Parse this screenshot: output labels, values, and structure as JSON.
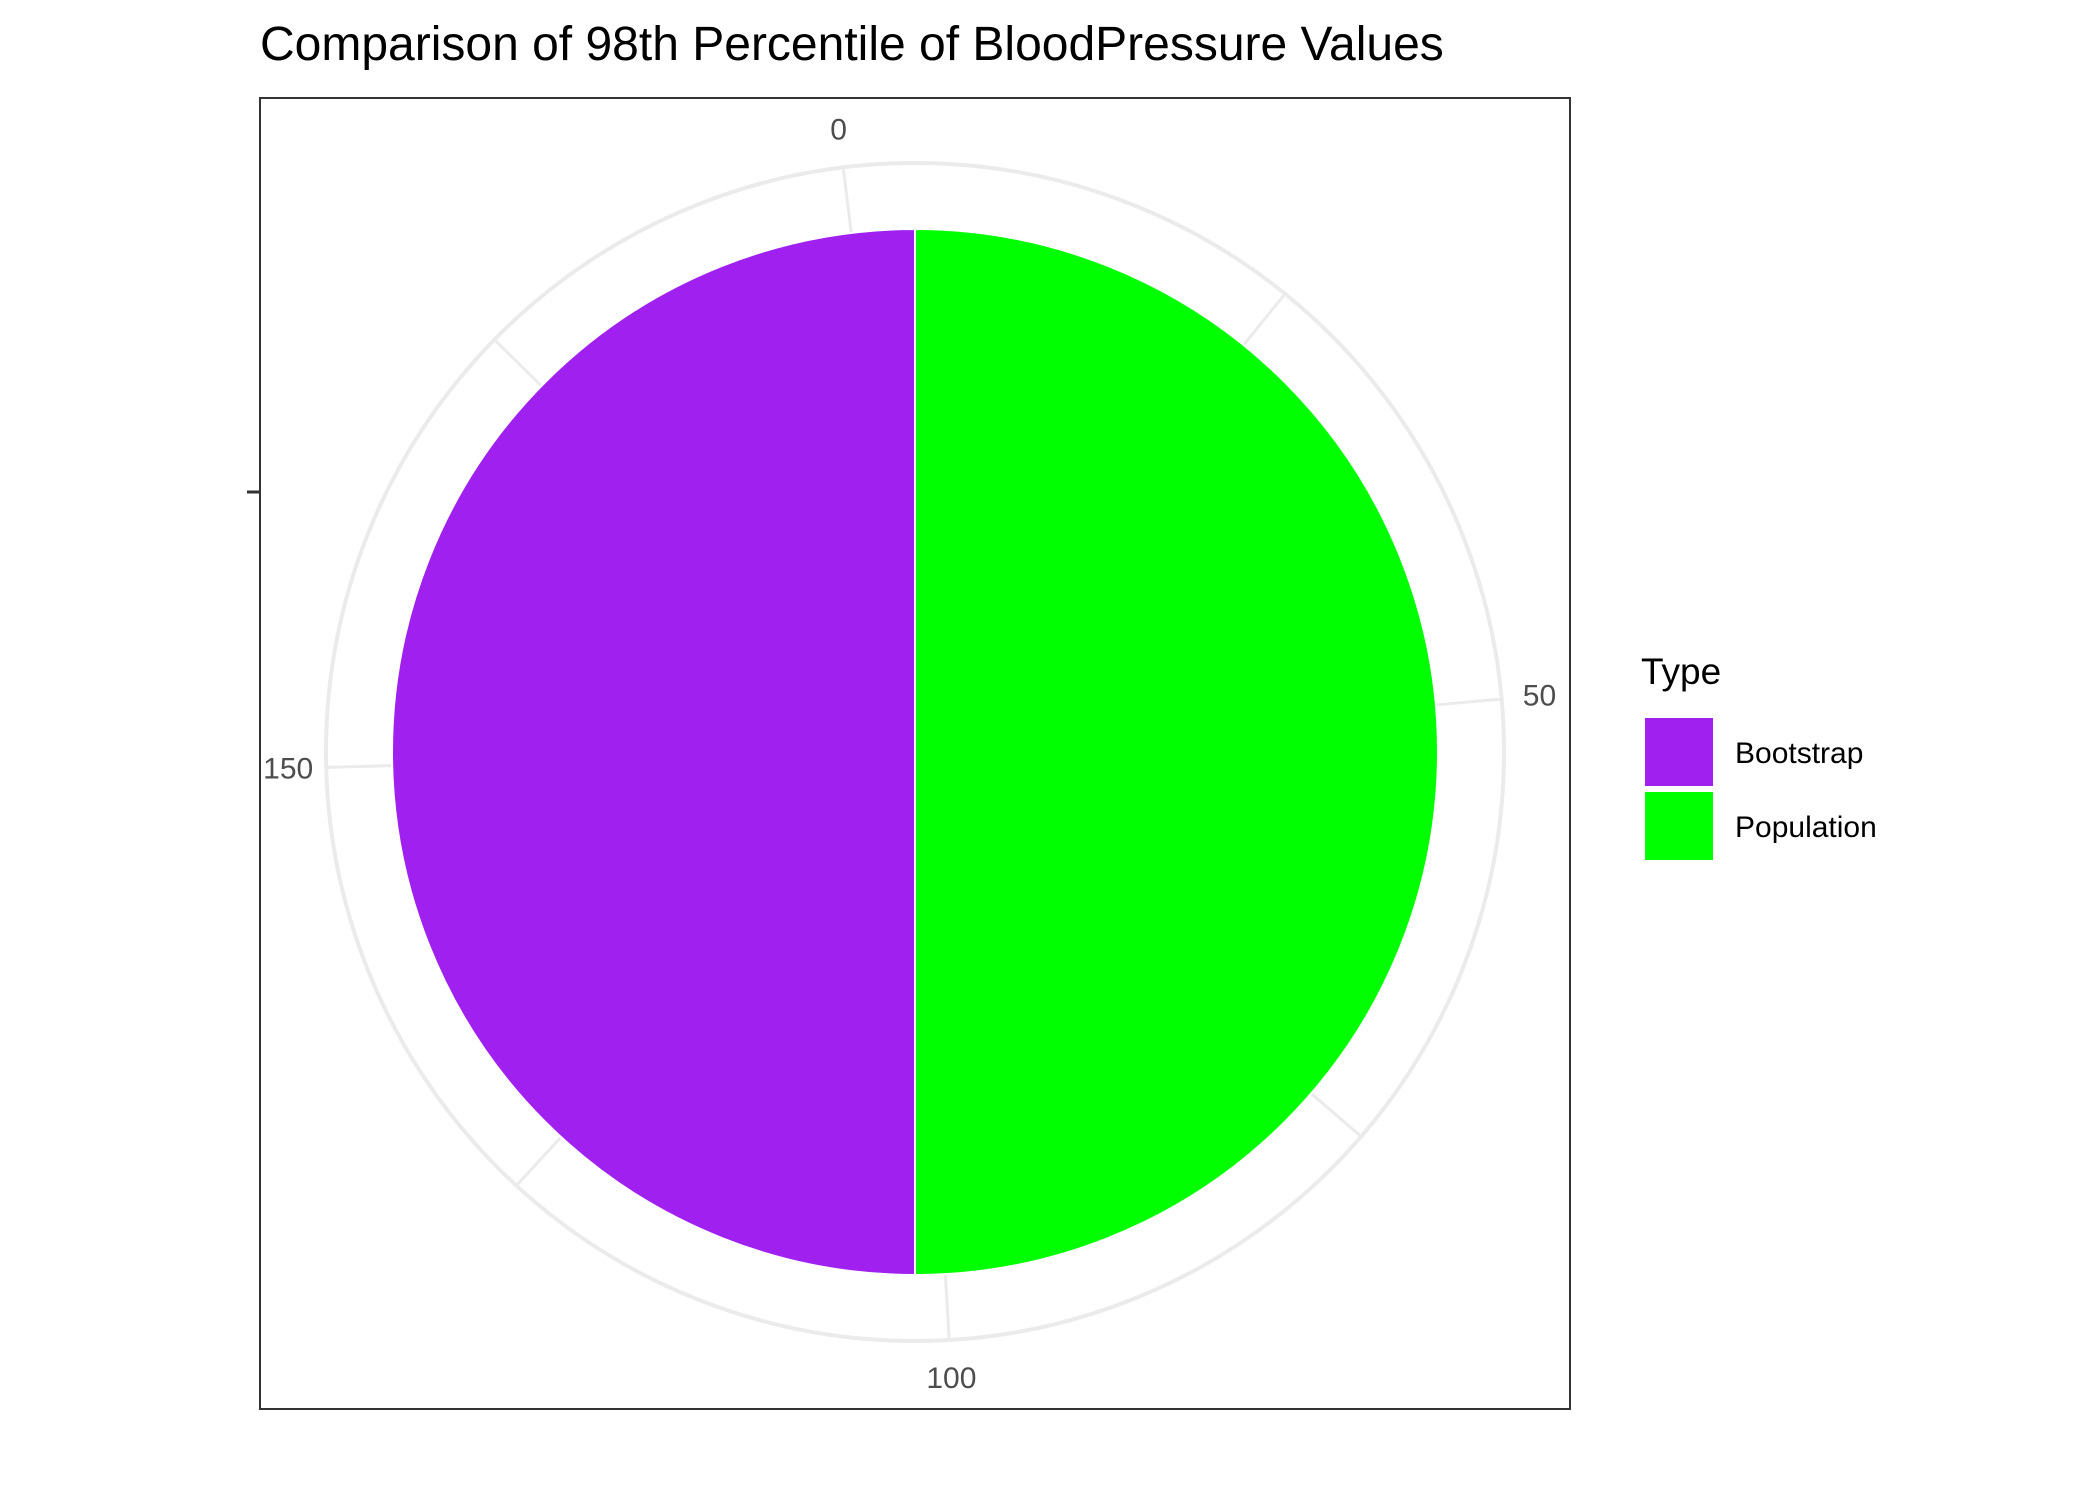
{
  "chart_data": {
    "type": "pie",
    "title": "Comparison of 98th Percentile of BloodPressure Values",
    "categories": [
      "Bootstrap",
      "Population"
    ],
    "values": [
      98,
      98
    ],
    "colors": [
      "#A020F0",
      "#00FF00"
    ],
    "theta_axis": {
      "range": [
        0,
        196
      ],
      "ticks": [
        "0",
        "50",
        "100",
        "150"
      ],
      "tick_values": [
        0,
        50,
        100,
        150
      ]
    },
    "legend": {
      "title": "Type",
      "position": "right",
      "items": [
        {
          "label": "Bootstrap",
          "color": "#A020F0"
        },
        {
          "label": "Population",
          "color": "#00FF00"
        }
      ]
    },
    "grid": true
  }
}
